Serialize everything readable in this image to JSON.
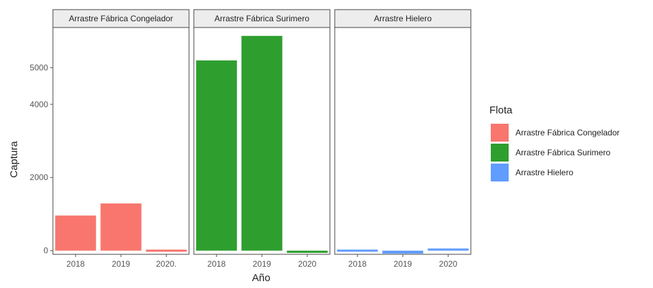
{
  "chart_data": {
    "type": "bar",
    "facet_by": "Flota",
    "xlabel": "Año",
    "ylabel": "Captura",
    "ylim": [
      -100,
      6100
    ],
    "yticks": [
      0,
      2000,
      4000,
      5000
    ],
    "ytick_labels": [
      "0",
      "2000",
      "4000",
      "5000"
    ],
    "legend": {
      "title": "Flota",
      "placement": "right",
      "entries": [
        "Arrastre Fábrica Congelador",
        "Arrastre Fábrica Surimero",
        "Arrastre Hielero"
      ]
    },
    "facets": [
      {
        "title": "Arrastre Fábrica Congelador",
        "color": "#f8766d",
        "categories": [
          "2018",
          "2019",
          "2020."
        ],
        "values": [
          960,
          1290,
          20
        ]
      },
      {
        "title": "Arrastre Fábrica Surimero",
        "color": "#2e9e2e",
        "categories": [
          "2018",
          "2019",
          "2020"
        ],
        "values": [
          5200,
          5870,
          -60
        ]
      },
      {
        "title": "Arrastre Hielero",
        "color": "#619cff",
        "categories": [
          "2018",
          "2019",
          "2020"
        ],
        "values": [
          -40,
          -80,
          60
        ]
      }
    ]
  }
}
